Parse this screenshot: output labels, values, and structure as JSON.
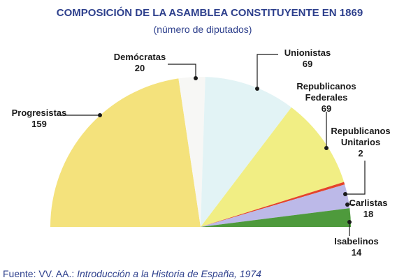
{
  "chart_data": {
    "type": "half-pie",
    "title": "COMPOSICIÓN DE LA ASAMBLEA CONSTITUYENTE EN 1869",
    "subtitle": "(número de diputados)",
    "categories": [
      "Progresistas",
      "Demócratas",
      "Unionistas",
      "Republicanos Federales",
      "Republicanos Unitarios",
      "Carlistas",
      "Isabelinos"
    ],
    "values": [
      159,
      20,
      69,
      69,
      2,
      18,
      14
    ],
    "colors": [
      "#f4e27c",
      "#f7f7f5",
      "#e2f3f5",
      "#f1ee84",
      "#e4442c",
      "#bcb9e8",
      "#4e9a3c"
    ],
    "source_prefix": "Fuente: VV. AA.:",
    "source_title": "Introducción a la Historia de España, 1974"
  }
}
